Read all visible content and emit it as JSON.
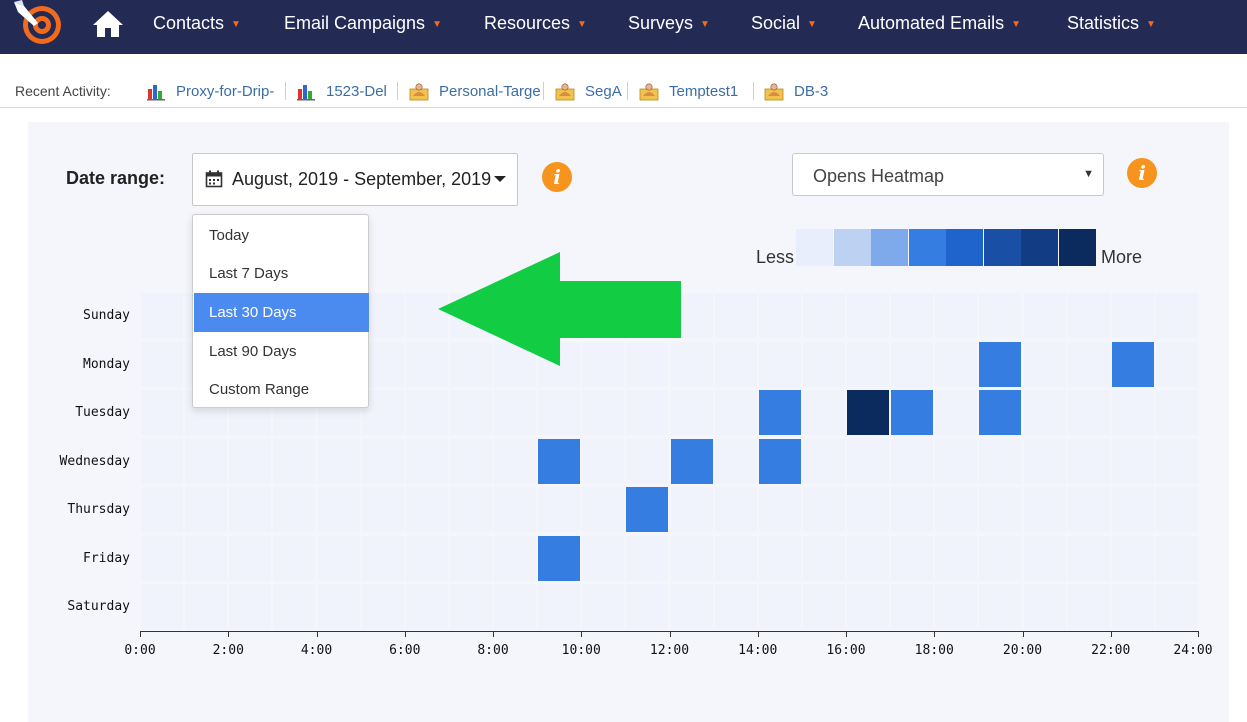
{
  "nav": {
    "items": [
      {
        "label": "Contacts"
      },
      {
        "label": "Email Campaigns"
      },
      {
        "label": "Resources"
      },
      {
        "label": "Surveys"
      },
      {
        "label": "Social"
      },
      {
        "label": "Automated Emails"
      },
      {
        "label": "Statistics"
      }
    ],
    "caret": "▼",
    "icons": {
      "logo": "target-logo-icon",
      "home": "home-icon"
    }
  },
  "recent": {
    "label": "Recent Activity:",
    "items": [
      {
        "label": "Proxy-for-Drip-",
        "icon": "bar-chart-icon"
      },
      {
        "label": "1523-Del",
        "icon": "bar-chart-icon"
      },
      {
        "label": "Personal-Targe",
        "icon": "contact-folder-icon"
      },
      {
        "label": "SegA",
        "icon": "contact-folder-icon"
      },
      {
        "label": "Temptest1",
        "icon": "contact-folder-icon"
      },
      {
        "label": "DB-3",
        "icon": "contact-folder-icon"
      }
    ]
  },
  "filters": {
    "date_label": "Date range:",
    "date_value": "August, 2019 - September, 2019",
    "info_glyph": "i",
    "heatmap_select": "Opens Heatmap",
    "select_arrow": "▼"
  },
  "date_menu": {
    "options": [
      "Today",
      "Last 7 Days",
      "Last 30 Days",
      "Last 90 Days",
      "Custom Range"
    ],
    "selected": "Last 30 Days"
  },
  "legend": {
    "less": "Less",
    "more": "More",
    "colors": [
      "#e8eefb",
      "#bdd2f2",
      "#7ea9ea",
      "#367de1",
      "#1f63cc",
      "#1a4fa6",
      "#123c84",
      "#0b2a5e"
    ]
  },
  "chart_data": {
    "type": "heatmap",
    "title": "",
    "xlabel": "",
    "ylabel": "",
    "rows": [
      "Sunday",
      "Monday",
      "Tuesday",
      "Wednesday",
      "Thursday",
      "Friday",
      "Saturday"
    ],
    "hours": 24,
    "xlim": [
      0,
      24
    ],
    "x_ticks": [
      "0:00",
      "2:00",
      "4:00",
      "6:00",
      "8:00",
      "10:00",
      "12:00",
      "14:00",
      "16:00",
      "18:00",
      "20:00",
      "22:00",
      "24:00"
    ],
    "empty_color": "#f0f3fb",
    "active_cells": [
      {
        "day": "Monday",
        "hour": 19,
        "level": 4
      },
      {
        "day": "Monday",
        "hour": 22,
        "level": 4
      },
      {
        "day": "Tuesday",
        "hour": 14,
        "level": 4
      },
      {
        "day": "Tuesday",
        "hour": 16,
        "level": 8
      },
      {
        "day": "Tuesday",
        "hour": 17,
        "level": 4
      },
      {
        "day": "Tuesday",
        "hour": 19,
        "level": 4
      },
      {
        "day": "Wednesday",
        "hour": 9,
        "level": 4
      },
      {
        "day": "Wednesday",
        "hour": 12,
        "level": 4
      },
      {
        "day": "Wednesday",
        "hour": 14,
        "level": 4
      },
      {
        "day": "Thursday",
        "hour": 11,
        "level": 4
      },
      {
        "day": "Friday",
        "hour": 9,
        "level": 4
      }
    ]
  },
  "annotation": {
    "arrow_color": "#12cc44",
    "arrow_icon": "green-arrow-icon"
  }
}
